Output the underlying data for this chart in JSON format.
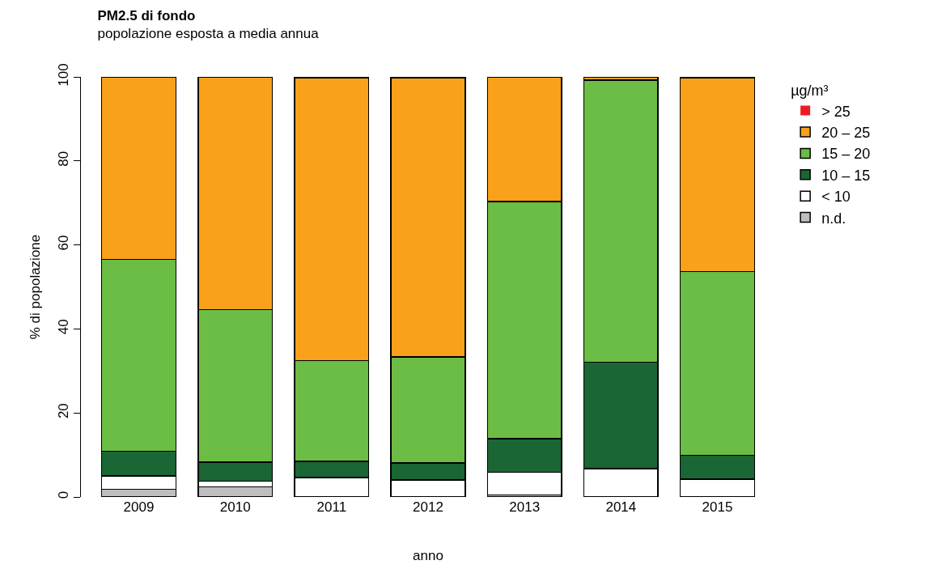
{
  "chart_data": {
    "type": "bar",
    "title": "PM2.5 di fondo",
    "subtitle": "popolazione esposta a media annua",
    "xlabel": "anno",
    "ylabel": "% di popolazione",
    "legend_title": "µg/m³",
    "categories": [
      "2009",
      "2010",
      "2011",
      "2012",
      "2013",
      "2014",
      "2015"
    ],
    "stacked": true,
    "ylim": [
      0,
      100
    ],
    "yticks": [
      0,
      20,
      40,
      60,
      80,
      100
    ],
    "legend": "top right",
    "series": [
      {
        "name": "n.d.",
        "color": "#bebebe",
        "values": [
          1.8,
          2.4,
          0,
          0,
          0.5,
          0,
          0
        ]
      },
      {
        "name": "< 10",
        "color": "#ffffff",
        "values": [
          3.2,
          1.4,
          4.6,
          4.0,
          5.4,
          6.7,
          4.2
        ]
      },
      {
        "name": "10 – 15",
        "color": "#1a6634",
        "values": [
          5.9,
          4.5,
          3.9,
          4.1,
          8.0,
          25.4,
          5.7
        ]
      },
      {
        "name": "15 – 20",
        "color": "#6bbd45",
        "values": [
          45.7,
          36.3,
          24.0,
          25.2,
          56.4,
          67.1,
          43.8
        ]
      },
      {
        "name": "20 – 25",
        "color": "#f9a11b",
        "values": [
          43.4,
          55.4,
          67.2,
          66.4,
          29.7,
          0.8,
          46.1
        ]
      },
      {
        "name": "> 25",
        "color": "#ed1c24",
        "values": [
          0,
          0,
          0.3,
          0.3,
          0,
          0,
          0.2
        ]
      }
    ]
  }
}
